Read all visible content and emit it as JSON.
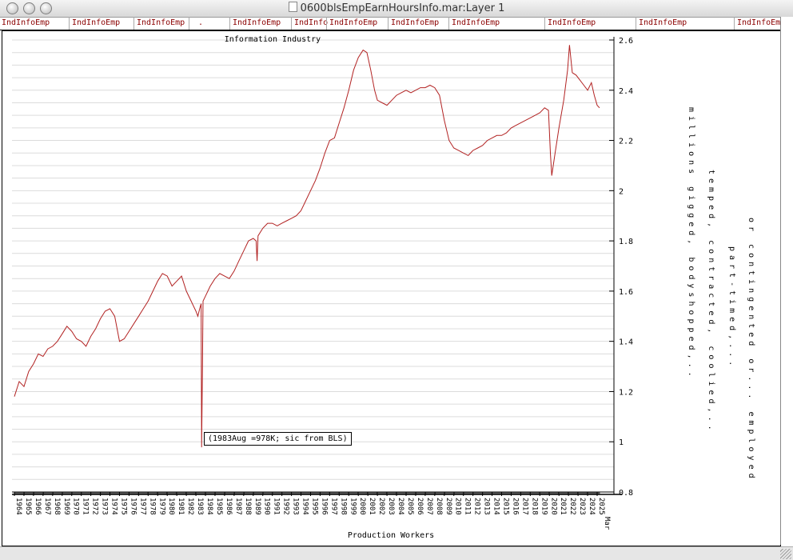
{
  "window": {
    "title": "0600blsEmpEarnHoursInfo.mar:Layer 1"
  },
  "header_labels": [
    "IndInfoEmp",
    "IndInfoEmp",
    "IndInfoEmp",
    ".",
    "IndInfoEmp",
    "IndInfo",
    "IndInfoEmp",
    "IndInfoEmp",
    "IndInfoEmp",
    "IndInfoEmp",
    "IndInfoEmp",
    "IndInfoEmp"
  ],
  "side_notes": [
    "millions gigged, bodyshopped,..",
    "temped, contracted, coolied,..",
    "part-timed,...",
    "or contingented or... employed"
  ],
  "annotation": "(1983Aug =978K; sic from BLS)",
  "chart_data": {
    "type": "line",
    "title": "Information Industry",
    "xlabel": "Production Workers",
    "ylabel": "",
    "x_range": [
      1964,
      2025.25
    ],
    "ylim": [
      0.8,
      2.6
    ],
    "y_ticks": [
      "0.8",
      "1",
      "1.2",
      "1.4",
      "1.6",
      "1.8",
      "2",
      "2.2",
      "2.4",
      "2.6"
    ],
    "x_ticks": [
      "1964",
      "1965",
      "1966",
      "1967",
      "1968",
      "1969",
      "1970",
      "1971",
      "1972",
      "1973",
      "1974",
      "1975",
      "1976",
      "1977",
      "1978",
      "1979",
      "1980",
      "1981",
      "1982",
      "1983",
      "1984",
      "1985",
      "1986",
      "1987",
      "1988",
      "1989",
      "1990",
      "1991",
      "1992",
      "1993",
      "1994",
      "1995",
      "1996",
      "1997",
      "1998",
      "1999",
      "2000",
      "2001",
      "2002",
      "2003",
      "2004",
      "2005",
      "2006",
      "2007",
      "2008",
      "2009",
      "2010",
      "2011",
      "2012",
      "2013",
      "2014",
      "2015",
      "2016",
      "2017",
      "2018",
      "2019",
      "2020",
      "2021",
      "2022",
      "2023",
      "2024",
      "2025"
    ],
    "x_tick_last": "Mar",
    "line_color": "#b22222",
    "grid": true,
    "series": [
      {
        "points": [
          [
            1964.0,
            1.18
          ],
          [
            1964.5,
            1.24
          ],
          [
            1965.0,
            1.22
          ],
          [
            1965.5,
            1.28
          ],
          [
            1966.0,
            1.31
          ],
          [
            1966.5,
            1.35
          ],
          [
            1967.0,
            1.34
          ],
          [
            1967.5,
            1.37
          ],
          [
            1968.0,
            1.38
          ],
          [
            1968.5,
            1.4
          ],
          [
            1969.0,
            1.43
          ],
          [
            1969.5,
            1.46
          ],
          [
            1970.0,
            1.44
          ],
          [
            1970.5,
            1.41
          ],
          [
            1971.0,
            1.4
          ],
          [
            1971.5,
            1.38
          ],
          [
            1972.0,
            1.42
          ],
          [
            1972.5,
            1.45
          ],
          [
            1973.0,
            1.49
          ],
          [
            1973.5,
            1.52
          ],
          [
            1974.0,
            1.53
          ],
          [
            1974.5,
            1.5
          ],
          [
            1975.0,
            1.4
          ],
          [
            1975.5,
            1.41
          ],
          [
            1976.0,
            1.44
          ],
          [
            1976.5,
            1.47
          ],
          [
            1977.0,
            1.5
          ],
          [
            1977.5,
            1.53
          ],
          [
            1978.0,
            1.56
          ],
          [
            1978.5,
            1.6
          ],
          [
            1979.0,
            1.64
          ],
          [
            1979.5,
            1.67
          ],
          [
            1980.0,
            1.66
          ],
          [
            1980.5,
            1.62
          ],
          [
            1981.0,
            1.64
          ],
          [
            1981.5,
            1.66
          ],
          [
            1982.0,
            1.6
          ],
          [
            1982.5,
            1.56
          ],
          [
            1983.0,
            1.52
          ],
          [
            1983.2,
            1.5
          ],
          [
            1983.4,
            1.53
          ],
          [
            1983.55,
            1.55
          ],
          [
            1983.6,
            0.978
          ],
          [
            1983.68,
            1.28
          ],
          [
            1983.75,
            1.56
          ],
          [
            1984.0,
            1.58
          ],
          [
            1984.5,
            1.62
          ],
          [
            1985.0,
            1.65
          ],
          [
            1985.5,
            1.67
          ],
          [
            1986.0,
            1.66
          ],
          [
            1986.5,
            1.65
          ],
          [
            1987.0,
            1.68
          ],
          [
            1987.5,
            1.72
          ],
          [
            1988.0,
            1.76
          ],
          [
            1988.5,
            1.8
          ],
          [
            1989.0,
            1.81
          ],
          [
            1989.3,
            1.8
          ],
          [
            1989.4,
            1.72
          ],
          [
            1989.5,
            1.82
          ],
          [
            1990.0,
            1.85
          ],
          [
            1990.5,
            1.87
          ],
          [
            1991.0,
            1.87
          ],
          [
            1991.5,
            1.86
          ],
          [
            1992.0,
            1.87
          ],
          [
            1992.5,
            1.88
          ],
          [
            1993.0,
            1.89
          ],
          [
            1993.5,
            1.9
          ],
          [
            1994.0,
            1.92
          ],
          [
            1994.5,
            1.96
          ],
          [
            1995.0,
            2.0
          ],
          [
            1995.5,
            2.04
          ],
          [
            1996.0,
            2.09
          ],
          [
            1996.5,
            2.15
          ],
          [
            1997.0,
            2.2
          ],
          [
            1997.5,
            2.21
          ],
          [
            1998.0,
            2.27
          ],
          [
            1998.5,
            2.33
          ],
          [
            1999.0,
            2.4
          ],
          [
            1999.5,
            2.48
          ],
          [
            2000.0,
            2.53
          ],
          [
            2000.5,
            2.56
          ],
          [
            2000.9,
            2.55
          ],
          [
            2001.3,
            2.48
          ],
          [
            2001.7,
            2.4
          ],
          [
            2002.0,
            2.36
          ],
          [
            2002.5,
            2.35
          ],
          [
            2003.0,
            2.34
          ],
          [
            2003.5,
            2.36
          ],
          [
            2004.0,
            2.38
          ],
          [
            2004.5,
            2.39
          ],
          [
            2005.0,
            2.4
          ],
          [
            2005.5,
            2.39
          ],
          [
            2006.0,
            2.4
          ],
          [
            2006.5,
            2.41
          ],
          [
            2007.0,
            2.41
          ],
          [
            2007.5,
            2.42
          ],
          [
            2008.0,
            2.41
          ],
          [
            2008.5,
            2.38
          ],
          [
            2009.0,
            2.28
          ],
          [
            2009.5,
            2.2
          ],
          [
            2010.0,
            2.17
          ],
          [
            2010.5,
            2.16
          ],
          [
            2011.0,
            2.15
          ],
          [
            2011.5,
            2.14
          ],
          [
            2012.0,
            2.16
          ],
          [
            2012.5,
            2.17
          ],
          [
            2013.0,
            2.18
          ],
          [
            2013.5,
            2.2
          ],
          [
            2014.0,
            2.21
          ],
          [
            2014.5,
            2.22
          ],
          [
            2015.0,
            2.22
          ],
          [
            2015.5,
            2.23
          ],
          [
            2016.0,
            2.25
          ],
          [
            2016.5,
            2.26
          ],
          [
            2017.0,
            2.27
          ],
          [
            2017.5,
            2.28
          ],
          [
            2018.0,
            2.29
          ],
          [
            2018.5,
            2.3
          ],
          [
            2019.0,
            2.31
          ],
          [
            2019.5,
            2.33
          ],
          [
            2019.9,
            2.32
          ],
          [
            2020.1,
            2.15
          ],
          [
            2020.25,
            2.06
          ],
          [
            2020.6,
            2.15
          ],
          [
            2021.0,
            2.25
          ],
          [
            2021.5,
            2.36
          ],
          [
            2021.9,
            2.48
          ],
          [
            2022.1,
            2.58
          ],
          [
            2022.4,
            2.47
          ],
          [
            2022.8,
            2.46
          ],
          [
            2023.2,
            2.44
          ],
          [
            2023.6,
            2.42
          ],
          [
            2024.0,
            2.4
          ],
          [
            2024.4,
            2.43
          ],
          [
            2024.7,
            2.38
          ],
          [
            2025.0,
            2.34
          ],
          [
            2025.25,
            2.33
          ]
        ]
      }
    ]
  }
}
